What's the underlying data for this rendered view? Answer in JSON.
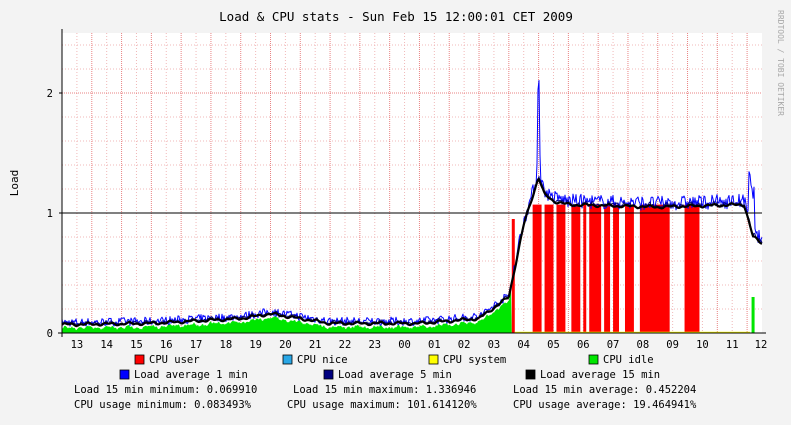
{
  "title": "Load & CPU stats - Sun Feb 15 12:00:01 CET 2009",
  "watermark": "RRDTOOL / TOBI OETIKER",
  "colors": {
    "background": "#f3f3f3",
    "canvas": "#ffffff",
    "grid_minor": "#f0b8b8",
    "grid_major": "#e05050",
    "cpu_user": "#ff0000",
    "cpu_nice": "#29a7e6",
    "cpu_system": "#ffff00",
    "cpu_idle": "#00e600",
    "load_1": "#0000ff",
    "load_5": "#000080",
    "load_15": "#000000"
  },
  "chart_data": {
    "type": "area",
    "ylabel": "Load",
    "ylim": [
      0,
      2.5
    ],
    "y_ticks": [
      "0",
      "1",
      "2"
    ],
    "x_ticks": [
      "13",
      "14",
      "15",
      "16",
      "17",
      "18",
      "19",
      "20",
      "21",
      "22",
      "23",
      "00",
      "01",
      "02",
      "03",
      "04",
      "05",
      "06",
      "07",
      "08",
      "09",
      "10",
      "11",
      "12"
    ],
    "grid": true,
    "series": [
      {
        "name": "CPU user",
        "color": "#ff0000"
      },
      {
        "name": "CPU nice",
        "color": "#29a7e6"
      },
      {
        "name": "CPU system",
        "color": "#ffff00"
      },
      {
        "name": "CPU idle",
        "color": "#00e600"
      },
      {
        "name": "Load average 1 min",
        "color": "#0000ff"
      },
      {
        "name": "Load average 5 min",
        "color": "#000080"
      },
      {
        "name": "Load average 15 min",
        "color": "#000000"
      }
    ],
    "load_profile": {
      "hours_from_start": [
        0,
        3,
        6,
        7,
        8,
        9,
        10,
        12,
        14,
        15,
        15.5,
        16,
        16.2,
        16.5,
        17,
        20,
        22.9,
        23.2,
        23.5
      ],
      "load_15": [
        0.07,
        0.08,
        0.12,
        0.16,
        0.12,
        0.08,
        0.08,
        0.08,
        0.12,
        0.3,
        0.9,
        1.3,
        1.15,
        1.1,
        1.07,
        1.05,
        1.07,
        0.8,
        0.75
      ]
    },
    "cpu_user_blocks_hours": [
      [
        15.8,
        16.1
      ],
      [
        16.2,
        16.5
      ],
      [
        16.6,
        16.9
      ],
      [
        17.1,
        17.4
      ],
      [
        17.5,
        17.6
      ],
      [
        17.7,
        18.1
      ],
      [
        18.2,
        18.4
      ],
      [
        18.5,
        18.7
      ],
      [
        18.9,
        19.2
      ],
      [
        19.4,
        20.4
      ],
      [
        20.9,
        21.4
      ]
    ],
    "stats": {
      "row1": [
        {
          "label": "Load 15 min minimum:",
          "value": "0.069910"
        },
        {
          "label": "Load 15 min maximum:",
          "value": "1.336946"
        },
        {
          "label": "Load 15 min average:",
          "value": "0.452204"
        }
      ],
      "row2": [
        {
          "label": "CPU usage minimum:",
          "value": "0.083493%"
        },
        {
          "label": "CPU usage maximum:",
          "value": "101.614120%"
        },
        {
          "label": "CPU usage average:",
          "value": "19.464941%"
        }
      ]
    }
  }
}
